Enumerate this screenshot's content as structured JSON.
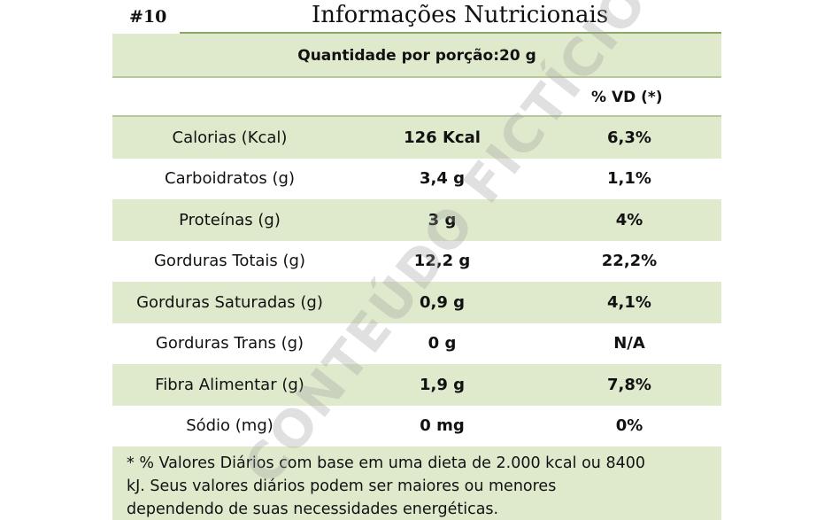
{
  "label_id": "#10",
  "title": "Informações Nutricionais",
  "serving": "Quantidade por porção:20 g",
  "header_vd": "% VD (*)",
  "rows": [
    {
      "name": "Calorias (Kcal)",
      "amount": "126 Kcal",
      "vd": "6,3%"
    },
    {
      "name": "Carboidratos (g)",
      "amount": "3,4 g",
      "vd": "1,1%"
    },
    {
      "name": "Proteínas (g)",
      "amount": "3 g",
      "vd": "4%"
    },
    {
      "name": "Gorduras Totais (g)",
      "amount": "12,2 g",
      "vd": "22,2%"
    },
    {
      "name": "Gorduras Saturadas (g)",
      "amount": "0,9 g",
      "vd": "4,1%"
    },
    {
      "name": "Gorduras Trans (g)",
      "amount": "0 g",
      "vd": "N/A"
    },
    {
      "name": "Fibra Alimentar (g)",
      "amount": "1,9 g",
      "vd": "7,8%"
    },
    {
      "name": "Sódio (mg)",
      "amount": "0 mg",
      "vd": "0%"
    }
  ],
  "footnote": {
    "line1": "* % Valores Diários com base em uma dieta de 2.000 kcal ou 8400",
    "line2": "kJ. Seus valores diários podem ser maiores ou menores",
    "line3": "dependendo de suas necessidades energéticas."
  },
  "watermark": "CONTEÚDO FICTÍCIO",
  "colors": {
    "band_green": "#dfeacd",
    "rule_green": "#8aa766"
  }
}
